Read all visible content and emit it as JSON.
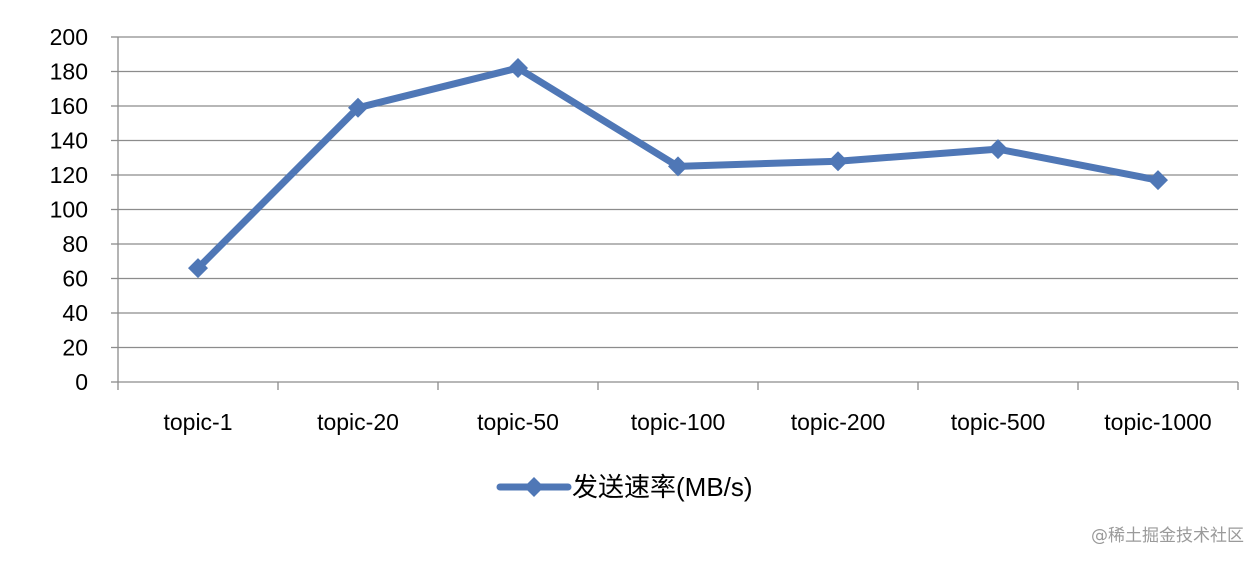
{
  "chart_data": {
    "type": "line",
    "title": "",
    "xlabel": "",
    "ylabel": "",
    "categories": [
      "topic-1",
      "topic-20",
      "topic-50",
      "topic-100",
      "topic-200",
      "topic-500",
      "topic-1000"
    ],
    "series": [
      {
        "name": "发送速率(MB/s)",
        "values": [
          66,
          159,
          182,
          125,
          128,
          135,
          117
        ]
      }
    ],
    "ylim": [
      0,
      200
    ],
    "yticks": [
      0,
      20,
      40,
      60,
      80,
      100,
      120,
      140,
      160,
      180,
      200
    ],
    "grid": true,
    "legend": "bottom",
    "colors": {
      "series": "#4f77b6",
      "grid": "#8c8c8c",
      "axis": "#8c8c8c",
      "text": "#000000"
    }
  },
  "watermark": "@稀土掘金技术社区"
}
